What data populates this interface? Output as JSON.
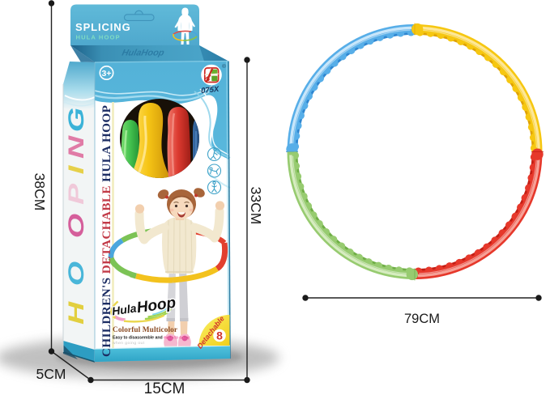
{
  "product": {
    "header": {
      "title": "SPLICING",
      "subtitle": "HULA HOOP"
    },
    "watermark": "HulaHoop",
    "age_badge": "3+",
    "reg_mark": "®",
    "brand_code": "075X",
    "side_vertical_word": "HOOPING",
    "side_letters": [
      {
        "ch": "H",
        "color": "#e2cf3f"
      },
      {
        "ch": "O",
        "color": "#49b6d9"
      },
      {
        "ch": "O",
        "color": "#d55f9b"
      },
      {
        "ch": "P",
        "color": "#f0c9d9"
      },
      {
        "ch": "I",
        "color": "#e6d049"
      },
      {
        "ch": "N",
        "color": "#e07ba6"
      },
      {
        "ch": "G",
        "color": "#3bb3d8"
      }
    ],
    "front_vertical_text": {
      "part1": "CHILDREN'S ",
      "part2": "DETACHABLE ",
      "part3": "HULA HOOP",
      "color_main": "#1c2d63",
      "color_accent": "#c23a47"
    },
    "brand_logo": {
      "hula": "Hula",
      "hoop": "Hoop"
    },
    "tagline": "Colorful Multicolor",
    "feature_line": {
      "black": "Easy to disassemble and ",
      "pink": "easy to carry"
    },
    "note_line": "when going out",
    "ribbon": {
      "label": "Detachable",
      "count": "8"
    }
  },
  "dimensions": {
    "total_height": "38CM",
    "depth": "5CM",
    "width": "15CM",
    "front_height": "33CM",
    "hoop_diameter": "79CM"
  },
  "colors": {
    "box_front_blue": "#59b7db",
    "box_top_blue": "#3f97bc",
    "header_blue": "#58b2d4",
    "hula_hoop_teal": "#7fdcc2",
    "floor_cyan_top": "#52c3de",
    "floor_cyan_bottom": "#2fa4c6",
    "ribbon_yellow": "#f6e23a",
    "ribbon_red": "#d2352b",
    "tagline_brown": "#8a4a22",
    "feature_pink": "#ef6aa8",
    "note_grey": "#bcbcbc",
    "dimension_line": "#222222",
    "window_bg": "#181008",
    "tube_green": "#44c24f",
    "tube_yellow": "#f6c515",
    "tube_red": "#dc3a30",
    "tube_blue": "#1d4a7e"
  },
  "hoop": {
    "segments": [
      {
        "name": "blue",
        "base": "#57aee8",
        "dark": "#2f86d0",
        "light": "#cfe9fb",
        "start": 180,
        "end": 270
      },
      {
        "name": "yellow",
        "base": "#f6c711",
        "dark": "#dfa206",
        "light": "#fde9a0",
        "start": 270,
        "end": 360
      },
      {
        "name": "red",
        "base": "#e6382b",
        "dark": "#c21e14",
        "light": "#f7a79d",
        "start": 0,
        "end": 90
      },
      {
        "name": "green",
        "base": "#97cb70",
        "dark": "#6fae46",
        "light": "#d9edc4",
        "start": 90,
        "end": 180
      }
    ]
  },
  "girl_hoop": {
    "yellow": "#f3c21d",
    "green": "#7cc355",
    "blue": "#4aa6dd",
    "red": "#e2402f"
  }
}
